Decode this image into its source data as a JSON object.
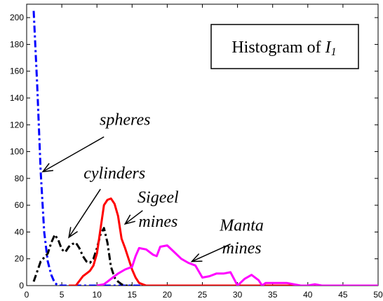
{
  "chart_data": {
    "type": "line",
    "title": "Histogram of ",
    "title_var": "I",
    "title_sub": "1",
    "xlabel": "",
    "ylabel": "",
    "xlim": [
      0,
      50
    ],
    "ylim": [
      0,
      210
    ],
    "xticks": [
      0,
      5,
      10,
      15,
      20,
      25,
      30,
      35,
      40,
      45,
      50
    ],
    "yticks": [
      0,
      20,
      40,
      60,
      80,
      100,
      120,
      140,
      160,
      180,
      200
    ],
    "grid": false,
    "legend": "none",
    "series": [
      {
        "color": "#0000ff",
        "style": "dashdot",
        "x": [
          1,
          1.5,
          2,
          2.5,
          3,
          3.5,
          4,
          4.5,
          5,
          10,
          20,
          30,
          40,
          50
        ],
        "y": [
          205,
          150,
          85,
          40,
          18,
          8,
          2,
          0,
          0,
          0,
          0,
          0,
          0,
          0
        ]
      },
      {
        "color": "#000000",
        "style": "dashdot",
        "x": [
          1,
          2,
          3,
          3.5,
          4,
          4.5,
          5,
          5.5,
          6,
          6.5,
          7,
          7.5,
          8,
          8.5,
          9,
          9.5,
          10,
          10.5,
          11,
          11.5,
          12,
          12.5,
          13,
          13.5,
          14,
          14.5,
          15
        ],
        "y": [
          3,
          18,
          24,
          32,
          38,
          34,
          27,
          25,
          29,
          31,
          32,
          28,
          22,
          18,
          17,
          20,
          28,
          38,
          43,
          32,
          14,
          6,
          3,
          1,
          0,
          0,
          0
        ]
      },
      {
        "color": "#ff0000",
        "style": "solid",
        "x": [
          6,
          7,
          8,
          8.5,
          9,
          9.5,
          10,
          10.5,
          11,
          11.5,
          12,
          12.5,
          13,
          13.5,
          14,
          14.5,
          15,
          15.5,
          16,
          17,
          20,
          30,
          40,
          50
        ],
        "y": [
          0,
          0,
          7,
          9,
          11,
          15,
          24,
          42,
          60,
          64,
          65,
          61,
          52,
          35,
          28,
          20,
          12,
          6,
          2,
          0,
          0,
          0,
          0,
          0
        ]
      },
      {
        "color": "#ff00ff",
        "style": "solid",
        "x": [
          10,
          11,
          11.5,
          12,
          12.5,
          13,
          14,
          15,
          15.5,
          16,
          17,
          18,
          18.5,
          19,
          20,
          21,
          22,
          23,
          24,
          25,
          26,
          27,
          28,
          29,
          30,
          31,
          32,
          33,
          33.5,
          34,
          35,
          36,
          37,
          38,
          39,
          40,
          41,
          42,
          45,
          50
        ],
        "y": [
          0,
          1,
          3,
          5,
          7,
          9,
          12,
          14,
          22,
          28,
          27,
          23,
          22,
          29,
          30,
          25,
          20,
          17,
          15,
          6,
          7,
          9,
          9,
          10,
          0,
          5,
          8,
          4,
          0,
          2,
          2,
          2,
          2,
          1,
          0,
          0,
          1,
          0,
          0,
          0
        ]
      }
    ],
    "annotations": [
      {
        "text": "spheres",
        "x": 14,
        "y": 120
      },
      {
        "text": "cylinders",
        "x": 12.5,
        "y": 80
      },
      {
        "text": "Sigeel",
        "x": 18.7,
        "y": 62
      },
      {
        "text": "mines",
        "x": 18.7,
        "y": 44
      },
      {
        "text": "Manta",
        "x": 30.6,
        "y": 41
      },
      {
        "text": "mines",
        "x": 30.6,
        "y": 24
      }
    ],
    "arrows": [
      {
        "from": [
          11,
          111
        ],
        "to": [
          2.3,
          85
        ]
      },
      {
        "from": [
          10.5,
          72
        ],
        "to": [
          6,
          36
        ]
      },
      {
        "from": [
          16.5,
          56
        ],
        "to": [
          14,
          46
        ]
      },
      {
        "from": [
          29,
          31
        ],
        "to": [
          23.5,
          18
        ]
      }
    ]
  }
}
